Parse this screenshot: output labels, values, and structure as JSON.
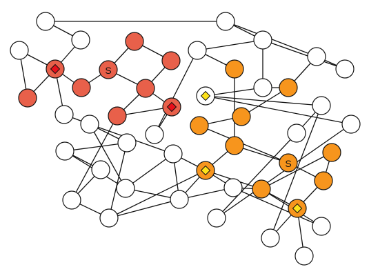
{
  "colors": {
    "default_node": "#ffffff",
    "group_red": "#e8604a",
    "group_orange": "#f7951d",
    "marker_red": "#e8101a",
    "marker_yellow": "#fde21a",
    "stroke": "#111111"
  },
  "nodes": [
    {
      "id": "n1",
      "group": "white"
    },
    {
      "id": "n2",
      "group": "white"
    },
    {
      "id": "n3",
      "group": "white"
    },
    {
      "id": "n4",
      "group": "white"
    },
    {
      "id": "n5",
      "group": "red",
      "marker": "red"
    },
    {
      "id": "n6",
      "group": "red"
    },
    {
      "id": "n7",
      "group": "red"
    },
    {
      "id": "n8",
      "group": "red",
      "label": "S"
    },
    {
      "id": "n9",
      "group": "red"
    },
    {
      "id": "n10",
      "group": "red"
    },
    {
      "id": "n11",
      "group": "red"
    },
    {
      "id": "n12",
      "group": "red",
      "marker": "red"
    },
    {
      "id": "n13",
      "group": "red"
    },
    {
      "id": "n14",
      "group": "white"
    },
    {
      "id": "n15",
      "group": "white"
    },
    {
      "id": "n16",
      "group": "white"
    },
    {
      "id": "n17",
      "group": "white"
    },
    {
      "id": "n18",
      "group": "white"
    },
    {
      "id": "n19",
      "group": "orange"
    },
    {
      "id": "n20",
      "group": "white"
    },
    {
      "id": "n21",
      "group": "white",
      "marker": "yellow"
    },
    {
      "id": "n22",
      "group": "white"
    },
    {
      "id": "n23",
      "group": "white"
    },
    {
      "id": "n24",
      "group": "white"
    },
    {
      "id": "n25",
      "group": "orange"
    },
    {
      "id": "n26",
      "group": "orange"
    },
    {
      "id": "n27",
      "group": "orange"
    },
    {
      "id": "n28",
      "group": "orange"
    },
    {
      "id": "n29",
      "group": "orange",
      "label": "S"
    },
    {
      "id": "n30",
      "group": "orange"
    },
    {
      "id": "n31",
      "group": "orange"
    },
    {
      "id": "n32",
      "group": "orange",
      "marker": "yellow"
    },
    {
      "id": "n33",
      "group": "orange"
    },
    {
      "id": "n34",
      "group": "orange",
      "marker": "yellow"
    },
    {
      "id": "n35",
      "group": "white"
    },
    {
      "id": "n36",
      "group": "white"
    },
    {
      "id": "n37",
      "group": "white"
    },
    {
      "id": "n38",
      "group": "white"
    },
    {
      "id": "n39",
      "group": "white"
    },
    {
      "id": "n40",
      "group": "white"
    },
    {
      "id": "n41",
      "group": "white"
    },
    {
      "id": "n42",
      "group": "white"
    },
    {
      "id": "n43",
      "group": "white"
    },
    {
      "id": "n44",
      "group": "white"
    },
    {
      "id": "n45",
      "group": "white"
    },
    {
      "id": "n46",
      "group": "white"
    },
    {
      "id": "n47",
      "group": "white"
    },
    {
      "id": "n48",
      "group": "white"
    },
    {
      "id": "n49",
      "group": "white"
    }
  ],
  "edges": [
    [
      "n1",
      "n2"
    ],
    [
      "n1",
      "n3"
    ],
    [
      "n2",
      "n17"
    ],
    [
      "n2",
      "n16"
    ],
    [
      "n3",
      "n5"
    ],
    [
      "n4",
      "n5"
    ],
    [
      "n4",
      "n6"
    ],
    [
      "n5",
      "n6"
    ],
    [
      "n5",
      "n7"
    ],
    [
      "n5",
      "n35"
    ],
    [
      "n7",
      "n8"
    ],
    [
      "n8",
      "n9"
    ],
    [
      "n8",
      "n11"
    ],
    [
      "n9",
      "n10"
    ],
    [
      "n10",
      "n11"
    ],
    [
      "n11",
      "n13"
    ],
    [
      "n11",
      "n12"
    ],
    [
      "n12",
      "n14"
    ],
    [
      "n13",
      "n41"
    ],
    [
      "n13",
      "n12"
    ],
    [
      "n14",
      "n15"
    ],
    [
      "n16",
      "n15"
    ],
    [
      "n16",
      "n18"
    ],
    [
      "n16",
      "n20"
    ],
    [
      "n17",
      "n18"
    ],
    [
      "n17",
      "n19"
    ],
    [
      "n19",
      "n20"
    ],
    [
      "n19",
      "n26"
    ],
    [
      "n20",
      "n21"
    ],
    [
      "n21",
      "n22"
    ],
    [
      "n21",
      "n24"
    ],
    [
      "n22",
      "n23"
    ],
    [
      "n23",
      "n46"
    ],
    [
      "n22",
      "n47"
    ],
    [
      "n24",
      "n46"
    ],
    [
      "n15",
      "n25"
    ],
    [
      "n25",
      "n28"
    ],
    [
      "n26",
      "n27"
    ],
    [
      "n27",
      "n29"
    ],
    [
      "n28",
      "n32"
    ],
    [
      "n28",
      "n29"
    ],
    [
      "n29",
      "n31"
    ],
    [
      "n30",
      "n33"
    ],
    [
      "n31",
      "n30"
    ],
    [
      "n32",
      "n33"
    ],
    [
      "n32",
      "n45"
    ],
    [
      "n33",
      "n34"
    ],
    [
      "n33",
      "n48"
    ],
    [
      "n34",
      "n31"
    ],
    [
      "n34",
      "n49"
    ],
    [
      "n34",
      "n47"
    ],
    [
      "n35",
      "n36"
    ],
    [
      "n36",
      "n40"
    ],
    [
      "n36",
      "n37"
    ],
    [
      "n37",
      "n42"
    ],
    [
      "n37",
      "n38"
    ],
    [
      "n38",
      "n39"
    ],
    [
      "n38",
      "n40"
    ],
    [
      "n39",
      "n41"
    ],
    [
      "n40",
      "n43"
    ],
    [
      "n40",
      "n44"
    ],
    [
      "n43",
      "n44"
    ],
    [
      "n41",
      "n42"
    ],
    [
      "n42",
      "n44"
    ],
    [
      "n42",
      "n32"
    ],
    [
      "n44",
      "n45"
    ],
    [
      "n45",
      "n33"
    ],
    [
      "n32",
      "n43"
    ],
    [
      "n45",
      "n48"
    ],
    [
      "n44",
      "n32"
    ],
    [
      "n43",
      "n36"
    ]
  ]
}
